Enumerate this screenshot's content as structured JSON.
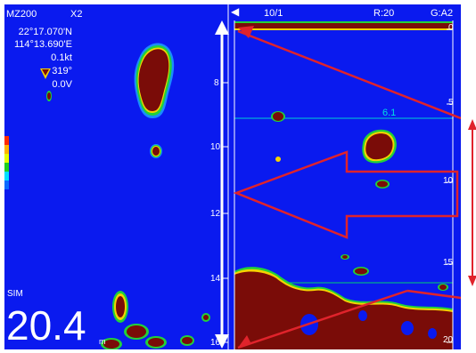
{
  "header_left": {
    "mode": "MZ200",
    "zoom": "X2",
    "lat": "22°17.070'N",
    "lon": "114°13.690'E",
    "speed": "0.1kt",
    "heading": "319°",
    "voltage": "0.0V"
  },
  "header_right": {
    "range": "10/1",
    "r_value": "R:20",
    "gain": "G:A2",
    "back_arrow": "arrow-left-icon"
  },
  "left_scale_ticks": [
    "8",
    "10",
    "12",
    "14",
    "16"
  ],
  "right_scale_ticks": [
    "0",
    "5",
    "10",
    "15",
    "20"
  ],
  "depth_marker": "6.1",
  "status": {
    "sim": "SIM",
    "depth_value": "20.4",
    "depth_unit": "m"
  },
  "colors": {
    "water": "#0a1aef",
    "target": "#7a0c08",
    "annotation_red": "#e0232b",
    "annotation_white": "#ffffff"
  }
}
